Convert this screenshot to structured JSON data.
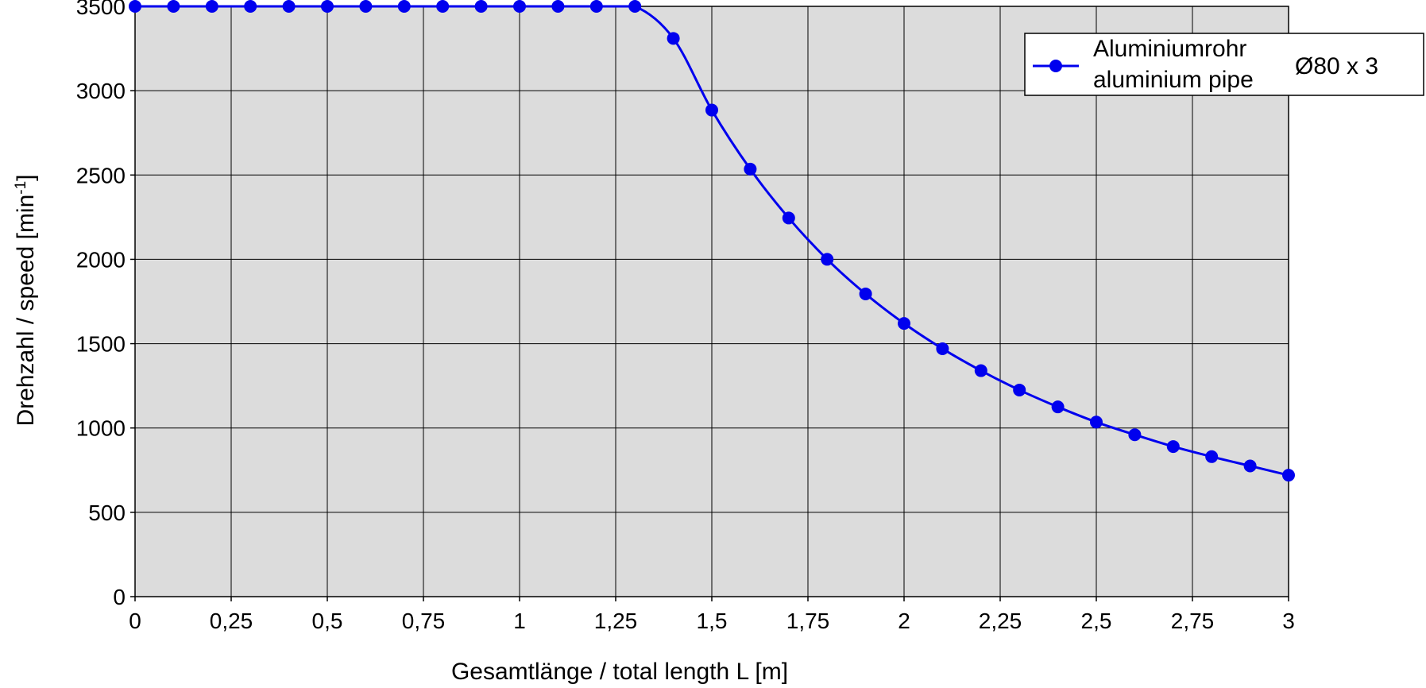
{
  "chart_data": {
    "type": "line",
    "xlabel": "Gesamtlänge / total length L [m]",
    "ylabel_main": "Drehzahl / speed [min",
    "ylabel_sup": "-1",
    "ylabel_end": "]",
    "xlim": [
      0,
      3
    ],
    "ylim": [
      0,
      3500
    ],
    "grid": true,
    "legend_position": "top-right",
    "x_ticks": [
      0,
      0.25,
      0.5,
      0.75,
      1,
      1.25,
      1.5,
      1.75,
      2,
      2.25,
      2.5,
      2.75,
      3
    ],
    "x_tick_labels": [
      "0",
      "0,25",
      "0,5",
      "0,75",
      "1",
      "1,25",
      "1,5",
      "1,75",
      "2",
      "2,25",
      "2,5",
      "2,75",
      "3"
    ],
    "y_ticks": [
      0,
      500,
      1000,
      1500,
      2000,
      2500,
      3000,
      3500
    ],
    "y_tick_labels": [
      "0",
      "500",
      "1000",
      "1500",
      "2000",
      "2500",
      "3000",
      "3500"
    ],
    "series": [
      {
        "legend_line1": "Aluminiumrohr",
        "legend_line2": "aluminium pipe",
        "legend_size": "Ø80 x 3",
        "color": "#0000ee",
        "x": [
          0,
          0.1,
          0.2,
          0.3,
          0.4,
          0.5,
          0.6,
          0.7,
          0.8,
          0.9,
          1.0,
          1.1,
          1.2,
          1.3,
          1.4,
          1.5,
          1.6,
          1.7,
          1.8,
          1.9,
          2.0,
          2.1,
          2.2,
          2.3,
          2.4,
          2.5,
          2.6,
          2.7,
          2.8,
          2.9,
          3.0
        ],
        "y": [
          3500,
          3500,
          3500,
          3500,
          3500,
          3500,
          3500,
          3500,
          3500,
          3500,
          3500,
          3500,
          3500,
          3500,
          3310,
          2885,
          2535,
          2245,
          2000,
          1795,
          1620,
          1470,
          1340,
          1225,
          1125,
          1035,
          960,
          890,
          830,
          775,
          720
        ]
      }
    ]
  }
}
